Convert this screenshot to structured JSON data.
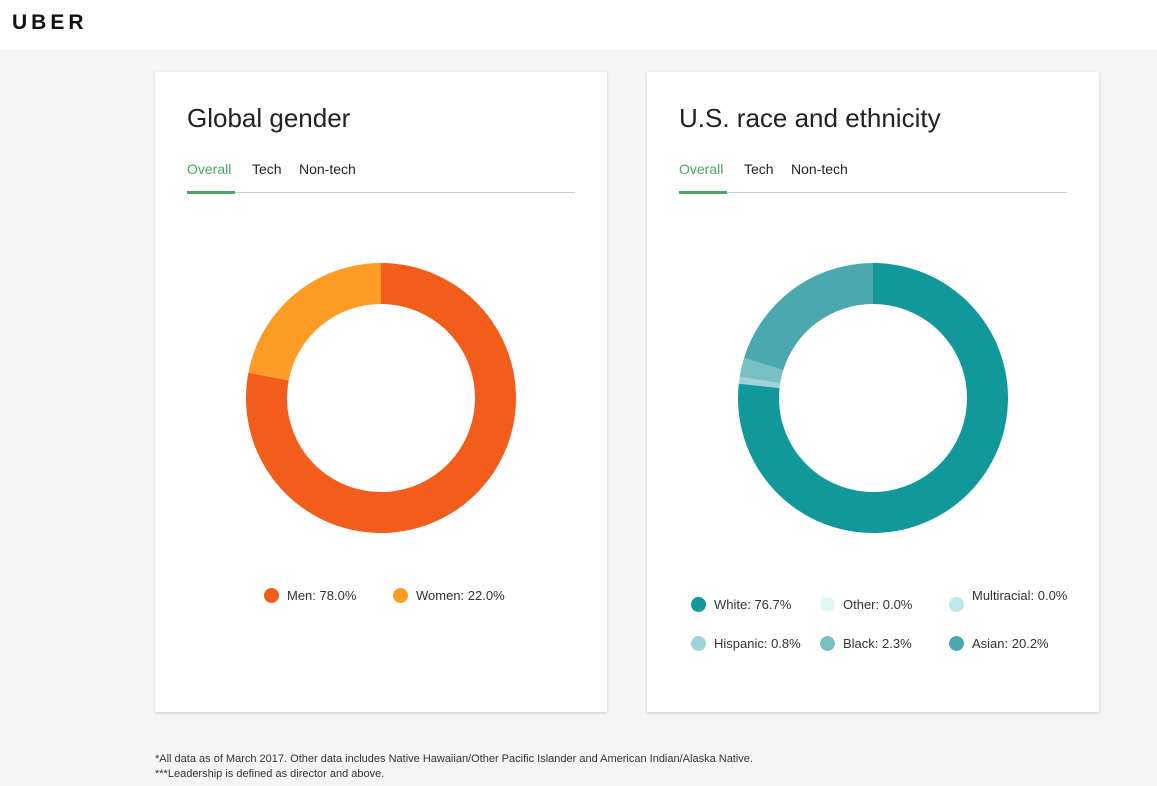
{
  "brand": {
    "logo_text": "UBER"
  },
  "cards": [
    {
      "title": "Global gender",
      "tabs": [
        {
          "label": "Overall",
          "active": true
        },
        {
          "label": "Tech",
          "active": false
        },
        {
          "label": "Non-tech",
          "active": false
        }
      ]
    },
    {
      "title": "U.S. race and ethnicity",
      "tabs": [
        {
          "label": "Overall",
          "active": true
        },
        {
          "label": "Tech",
          "active": false
        },
        {
          "label": "Non-tech",
          "active": false
        }
      ]
    }
  ],
  "chart_data": [
    {
      "type": "pie",
      "title": "Global gender",
      "donut": true,
      "start": "top",
      "direction": "clockwise",
      "slices": [
        {
          "name": "Men",
          "value": 78.0,
          "label": "Men: 78.0%",
          "color": "#f25d1b"
        },
        {
          "name": "Women",
          "value": 22.0,
          "label": "Women: 22.0%",
          "color": "#fd9b25"
        }
      ],
      "legend_position": "bottom"
    },
    {
      "type": "pie",
      "title": "U.S. race and ethnicity",
      "donut": true,
      "start": "top",
      "direction": "clockwise",
      "slices": [
        {
          "name": "White",
          "value": 76.7,
          "label": "White: 76.7%",
          "color": "#10989a"
        },
        {
          "name": "Other",
          "value": 0.0,
          "label": "Other: 0.0%",
          "color": "#e0f7f6"
        },
        {
          "name": "Multiracial",
          "value": 0.0,
          "label": "Multiracial: 0.0%",
          "color": "#bde6e8"
        },
        {
          "name": "Hispanic",
          "value": 0.8,
          "label": "Hispanic: 0.8%",
          "color": "#9fd3d8"
        },
        {
          "name": "Black",
          "value": 2.3,
          "label": "Black: 2.3%",
          "color": "#79c0c5"
        },
        {
          "name": "Asian",
          "value": 20.2,
          "label": "Asian: 20.2%",
          "color": "#4aa8ae"
        }
      ],
      "legend_position": "bottom"
    }
  ],
  "footnotes": [
    "*All data as of March 2017. Other data includes Native Hawaiian/Other Pacific Islander and American Indian/Alaska Native.",
    "***Leadership is defined as director and above."
  ]
}
